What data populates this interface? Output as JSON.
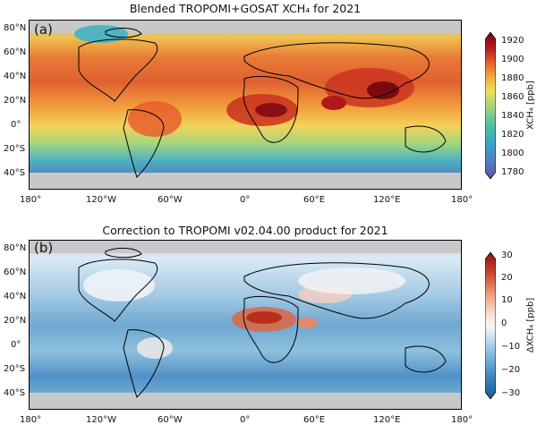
{
  "panels": [
    {
      "letter": "(a)",
      "title": "Blended TROPOMI+GOSAT XCH₄ for 2021",
      "colorbar": {
        "label": "XCH₄ [ppb]",
        "ticks": [
          "1920",
          "1900",
          "1880",
          "1860",
          "1840",
          "1820",
          "1800",
          "1780"
        ],
        "range": [
          1770,
          1930
        ],
        "colors": [
          "#6a4fa8",
          "#4f7fc2",
          "#3aa6c8",
          "#59c19a",
          "#a8d67a",
          "#f0e05a",
          "#f6a340",
          "#e05a2a",
          "#b0161e",
          "#6b0a10"
        ]
      }
    },
    {
      "letter": "(b)",
      "title": "Correction to TROPOMI v02.04.00 product for 2021",
      "colorbar": {
        "label": "ΔXCH₄ [ppb]",
        "ticks": [
          "30",
          "20",
          "10",
          "0",
          "−10",
          "−20",
          "−30"
        ],
        "range": [
          -30,
          30
        ],
        "colors": [
          "#1e5b94",
          "#3b86bf",
          "#8ec0de",
          "#dceaf4",
          "#f6f6f6",
          "#f9d7c4",
          "#ec9a7a",
          "#c8452f",
          "#8e1014"
        ]
      }
    }
  ],
  "lat_labels": [
    "80°N",
    "60°N",
    "40°N",
    "20°N",
    "0°",
    "20°S",
    "40°S"
  ],
  "lon_labels": [
    "180°",
    "120°W",
    "60°W",
    "0°",
    "60°E",
    "120°E",
    "180°"
  ]
}
